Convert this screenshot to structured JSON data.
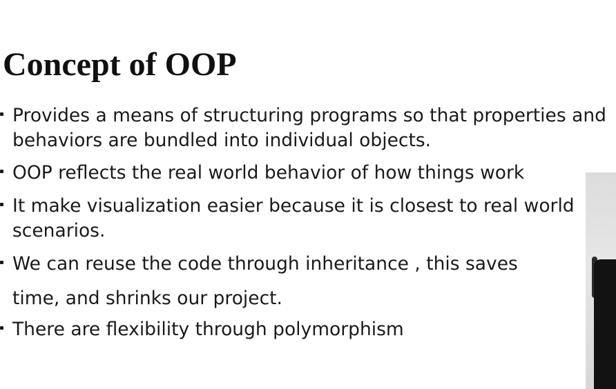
{
  "slide": {
    "title": "Concept of OOP",
    "bullets": [
      {
        "lines": [
          "Provides a means of structuring programs so that properties and",
          "behaviors are bundled into individual objects."
        ]
      },
      {
        "lines": [
          "OOP reflects the real world behavior of how things work"
        ]
      },
      {
        "lines": [
          "It make visualization easier because it is closest to real world",
          "scenarios."
        ]
      },
      {
        "lines": [
          "We can reuse the code through inheritance , this saves",
          "time, and shrinks our project."
        ]
      },
      {
        "lines": [
          "There are flexibility through polymorphism"
        ]
      }
    ]
  },
  "colors": {
    "background": "#ffffff",
    "text": "#1a1a1a"
  },
  "icons": {
    "bullet": "bullet-dot-icon"
  }
}
